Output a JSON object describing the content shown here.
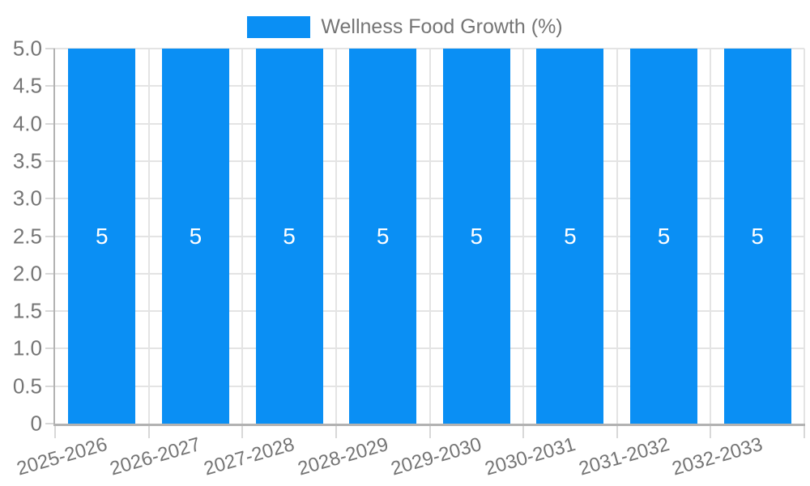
{
  "legend": {
    "label": "Wellness Food Growth (%)"
  },
  "chart_data": {
    "type": "bar",
    "title": "",
    "xlabel": "",
    "ylabel": "",
    "categories": [
      "2025-2026",
      "2026-2027",
      "2027-2028",
      "2028-2029",
      "2029-2030",
      "2030-2031",
      "2031-2032",
      "2032-2033"
    ],
    "series": [
      {
        "name": "Wellness Food Growth (%)",
        "color": "#0A8FF4",
        "values": [
          5,
          5,
          5,
          5,
          5,
          5,
          5,
          5
        ]
      }
    ],
    "bar_value_labels": [
      "5",
      "5",
      "5",
      "5",
      "5",
      "5",
      "5",
      "5"
    ],
    "value_label_color": "#FFFFFF",
    "ylim": [
      0,
      5
    ],
    "ytick_step": 0.5,
    "ytick_labels_top_to_bottom": [
      "5.0",
      "4.5",
      "4.0",
      "3.5",
      "3.0",
      "2.5",
      "2.0",
      "1.5",
      "1.0",
      "0.5",
      "0"
    ],
    "grid": true,
    "legend_position": "top",
    "x_tick_rotation_deg": -16
  },
  "colors": {
    "background": "#FFFFFF",
    "bar": "#0A8FF4",
    "grid": "#E4E4E4",
    "axis": "#B2B2B2",
    "tick_mark": "#D8D8D8",
    "text": "#757575",
    "value_text": "#FFFFFF"
  }
}
